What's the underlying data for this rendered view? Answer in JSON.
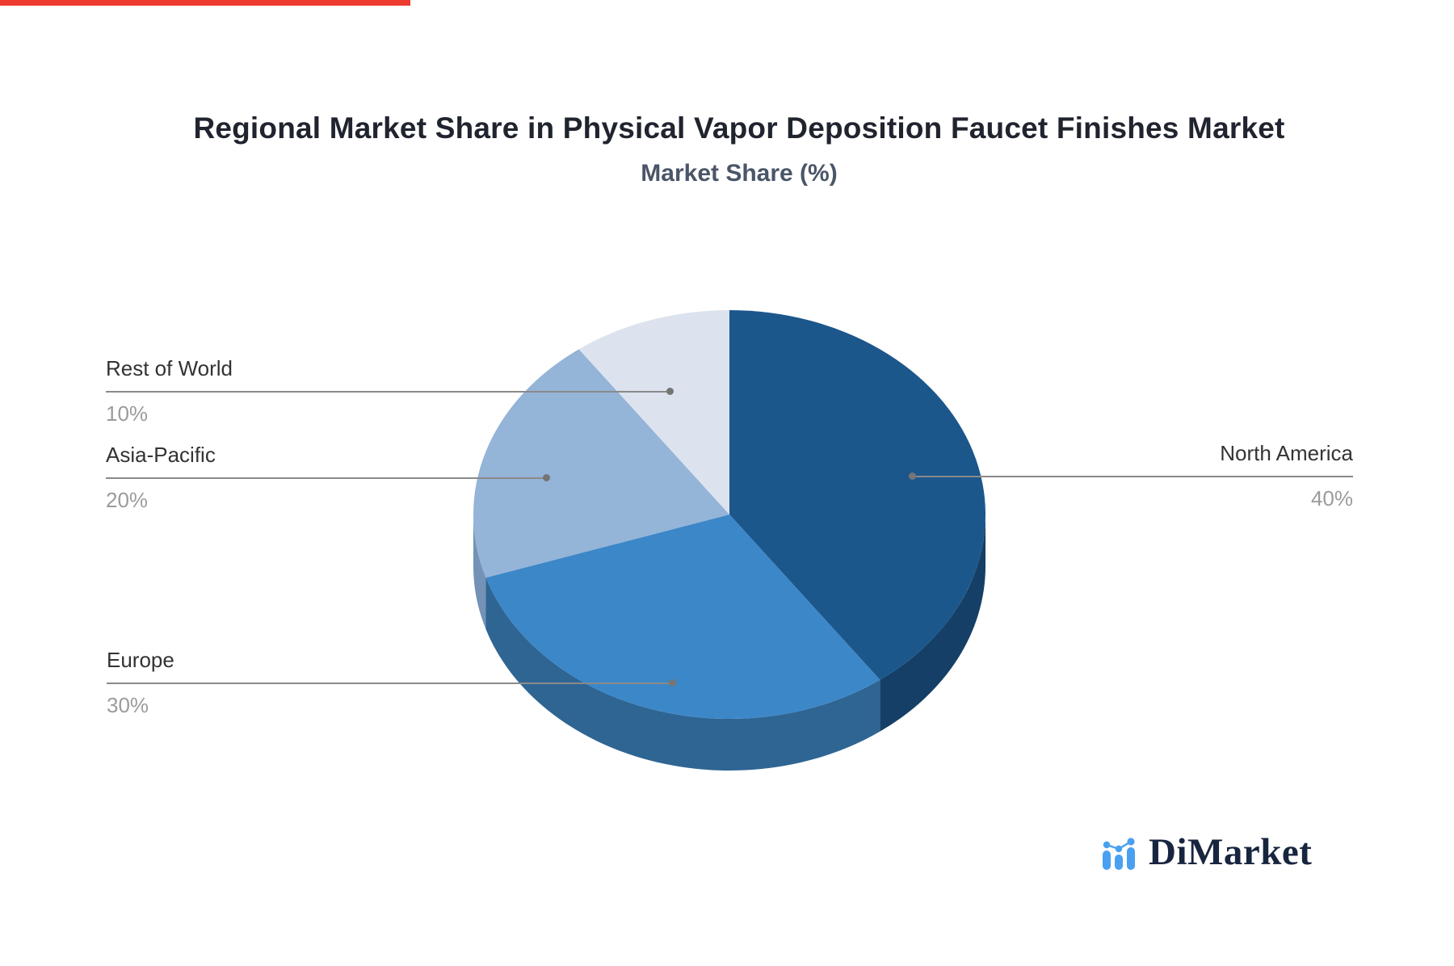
{
  "page": {
    "background": "#ffffff",
    "top_strip_color": "#ee3a2e"
  },
  "chart_data": {
    "type": "pie",
    "title": "Regional Market Share in Physical Vapor Deposition Faucet Finishes Market",
    "subtitle": "Market Share (%)",
    "effect": "3d-depth",
    "start_angle_deg": -90,
    "direction": "clockwise",
    "legend_position": "callout-leader-lines",
    "series": [
      {
        "label": "North America",
        "value": 40,
        "display": "40%",
        "color": "#1C578C",
        "side_color": "#153F66"
      },
      {
        "label": "Europe",
        "value": 30,
        "display": "30%",
        "color": "#3C87C8",
        "side_color": "#2F6593"
      },
      {
        "label": "Asia-Pacific",
        "value": 20,
        "display": "20%",
        "color": "#94B4D8",
        "side_color": "#7392B5"
      },
      {
        "label": "Rest of World",
        "value": 10,
        "display": "10%",
        "color": "#DCE3EF",
        "side_color": "#B9C5D8"
      }
    ]
  },
  "branding": {
    "name": "DiMarket",
    "icon": "bar-chart-logo-icon",
    "text_color": "#18253f",
    "icon_color": "#4aa0f0"
  }
}
